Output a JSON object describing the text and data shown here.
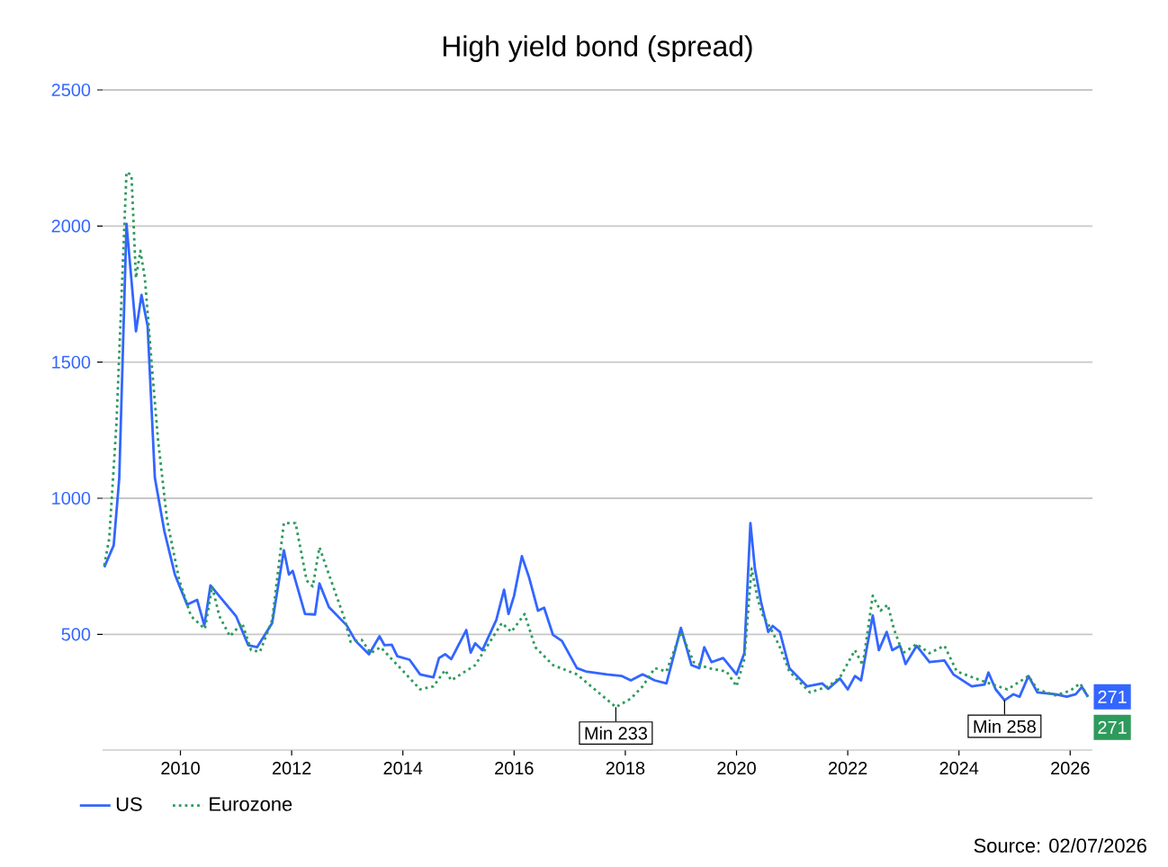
{
  "chart_data": {
    "type": "line",
    "title": "High yield bond (spread)",
    "xlim": [
      2008.6,
      2026.4
    ],
    "ylim": [
      75,
      2500
    ],
    "xticks": [
      2010,
      2012,
      2014,
      2016,
      2018,
      2020,
      2022,
      2024,
      2026
    ],
    "yticks": [
      500,
      1000,
      1500,
      2000,
      2500
    ],
    "grid": "y",
    "legend": "bottom left",
    "series": [
      {
        "name": "US",
        "color": "#3366ff",
        "line_style": "solid",
        "x": [
          2008.63,
          2008.8,
          2008.9,
          2009.03,
          2009.2,
          2009.3,
          2009.41,
          2009.54,
          2009.71,
          2009.9,
          2010.12,
          2010.3,
          2010.43,
          2010.54,
          2010.73,
          2011.0,
          2011.22,
          2011.38,
          2011.65,
          2011.86,
          2011.95,
          2012.02,
          2012.24,
          2012.42,
          2012.5,
          2012.67,
          2012.99,
          2013.15,
          2013.39,
          2013.58,
          2013.67,
          2013.8,
          2013.9,
          2014.12,
          2014.31,
          2014.55,
          2014.65,
          2014.76,
          2014.87,
          2015.14,
          2015.22,
          2015.3,
          2015.43,
          2015.68,
          2015.82,
          2015.9,
          2016.0,
          2016.14,
          2016.27,
          2016.43,
          2016.54,
          2016.7,
          2016.86,
          2017.13,
          2017.29,
          2017.67,
          2017.94,
          2018.1,
          2018.31,
          2018.53,
          2018.74,
          2019.0,
          2019.19,
          2019.33,
          2019.42,
          2019.55,
          2019.76,
          2020.0,
          2020.14,
          2020.25,
          2020.33,
          2020.44,
          2020.57,
          2020.65,
          2020.78,
          2020.95,
          2021.27,
          2021.54,
          2021.65,
          2021.86,
          2022.0,
          2022.13,
          2022.24,
          2022.35,
          2022.45,
          2022.56,
          2022.7,
          2022.8,
          2022.94,
          2023.04,
          2023.24,
          2023.47,
          2023.74,
          2023.9,
          2024.23,
          2024.46,
          2024.53,
          2024.66,
          2024.82,
          2024.98,
          2025.09,
          2025.25,
          2025.41,
          2025.73,
          2025.94,
          2026.1,
          2026.21,
          2026.32
        ],
        "values": [
          747,
          827,
          1075,
          2008,
          1613,
          1747,
          1633,
          1075,
          880,
          720,
          609,
          627,
          533,
          680,
          633,
          567,
          460,
          453,
          542,
          809,
          720,
          733,
          575,
          573,
          687,
          600,
          533,
          476,
          427,
          493,
          460,
          462,
          420,
          407,
          353,
          342,
          413,
          427,
          409,
          516,
          433,
          467,
          442,
          553,
          664,
          575,
          642,
          787,
          709,
          587,
          598,
          498,
          476,
          376,
          364,
          353,
          347,
          331,
          353,
          331,
          320,
          524,
          387,
          376,
          453,
          398,
          413,
          353,
          431,
          909,
          742,
          620,
          509,
          531,
          509,
          376,
          309,
          320,
          300,
          338,
          298,
          347,
          331,
          458,
          569,
          442,
          509,
          442,
          458,
          391,
          458,
          398,
          404,
          353,
          309,
          316,
          360,
          298,
          258,
          280,
          271,
          347,
          287,
          280,
          271,
          280,
          307,
          271
        ],
        "value_labels": [
          null,
          null,
          null,
          null,
          null,
          null,
          null,
          null,
          null,
          null,
          null,
          null,
          null,
          null,
          null,
          null,
          null,
          null,
          null,
          null,
          null,
          null,
          null,
          null,
          null,
          null,
          null,
          null,
          null,
          null,
          null,
          null,
          null,
          null,
          null,
          null,
          null,
          null,
          null,
          null,
          null,
          null,
          null,
          null,
          null,
          null,
          null,
          null,
          null,
          null,
          null,
          null,
          null,
          null,
          null,
          null,
          null,
          null,
          null,
          null,
          null,
          null,
          null,
          null,
          null,
          null,
          null,
          null,
          null,
          null,
          null,
          null,
          null,
          null,
          null,
          null,
          null,
          null,
          null,
          null,
          null,
          null,
          null,
          null,
          null,
          null,
          null,
          null,
          null,
          null,
          null,
          null,
          null,
          null,
          null,
          null,
          null,
          null,
          null,
          null,
          null,
          null,
          null,
          null,
          null,
          null,
          null,
          "271"
        ]
      },
      {
        "name": "Eurozone",
        "color": "#2e9a5c",
        "line_style": "dotted",
        "x": [
          2008.63,
          2008.72,
          2008.85,
          2009.03,
          2009.12,
          2009.2,
          2009.28,
          2009.36,
          2009.49,
          2009.6,
          2009.76,
          2009.98,
          2010.19,
          2010.44,
          2010.57,
          2010.7,
          2010.89,
          2011.11,
          2011.27,
          2011.43,
          2011.65,
          2011.86,
          2012.07,
          2012.27,
          2012.38,
          2012.5,
          2012.67,
          2012.94,
          2013.06,
          2013.26,
          2013.42,
          2013.6,
          2013.8,
          2014.01,
          2014.31,
          2014.55,
          2014.76,
          2014.87,
          2015.3,
          2015.78,
          2015.95,
          2016.19,
          2016.38,
          2016.7,
          2017.13,
          2017.45,
          2017.83,
          2018.1,
          2018.31,
          2018.53,
          2018.74,
          2019.0,
          2019.23,
          2019.49,
          2019.82,
          2020.0,
          2020.14,
          2020.27,
          2020.38,
          2020.46,
          2020.62,
          2020.78,
          2020.95,
          2021.32,
          2021.65,
          2021.86,
          2022.13,
          2022.27,
          2022.45,
          2022.59,
          2022.72,
          2022.83,
          2022.99,
          2023.24,
          2023.47,
          2023.74,
          2023.96,
          2024.39,
          2024.55,
          2024.87,
          2025.25,
          2025.41,
          2025.73,
          2026.0,
          2026.18,
          2026.32
        ],
        "values": [
          753,
          853,
          1276,
          2198,
          2187,
          1809,
          1909,
          1809,
          1476,
          1209,
          920,
          698,
          567,
          520,
          676,
          567,
          493,
          542,
          442,
          436,
          553,
          909,
          909,
          698,
          676,
          820,
          720,
          564,
          473,
          480,
          431,
          453,
          409,
          364,
          298,
          309,
          369,
          331,
          387,
          542,
          509,
          575,
          453,
          387,
          353,
          298,
          233,
          264,
          309,
          376,
          364,
          509,
          398,
          376,
          364,
          309,
          409,
          742,
          631,
          575,
          520,
          453,
          364,
          287,
          309,
          342,
          442,
          387,
          642,
          587,
          609,
          520,
          431,
          464,
          431,
          458,
          364,
          331,
          320,
          298,
          347,
          298,
          276,
          293,
          320,
          271
        ],
        "value_labels": [
          null,
          null,
          null,
          null,
          null,
          null,
          null,
          null,
          null,
          null,
          null,
          null,
          null,
          null,
          null,
          null,
          null,
          null,
          null,
          null,
          null,
          null,
          null,
          null,
          null,
          null,
          null,
          null,
          null,
          null,
          null,
          null,
          null,
          null,
          null,
          null,
          null,
          null,
          null,
          null,
          null,
          null,
          null,
          null,
          null,
          null,
          null,
          null,
          null,
          null,
          null,
          null,
          null,
          null,
          null,
          null,
          null,
          null,
          null,
          null,
          null,
          null,
          null,
          null,
          null,
          null,
          null,
          null,
          null,
          null,
          null,
          null,
          null,
          null,
          null,
          null,
          null,
          null,
          null,
          null,
          null,
          null,
          null,
          null,
          null,
          "271"
        ]
      }
    ],
    "annotations": [
      {
        "text": "Min  233",
        "x": 2017.83,
        "y": 233
      },
      {
        "text": "Min 258",
        "x": 2024.82,
        "y": 258
      },
      "Source: 02/07/2026"
    ]
  }
}
